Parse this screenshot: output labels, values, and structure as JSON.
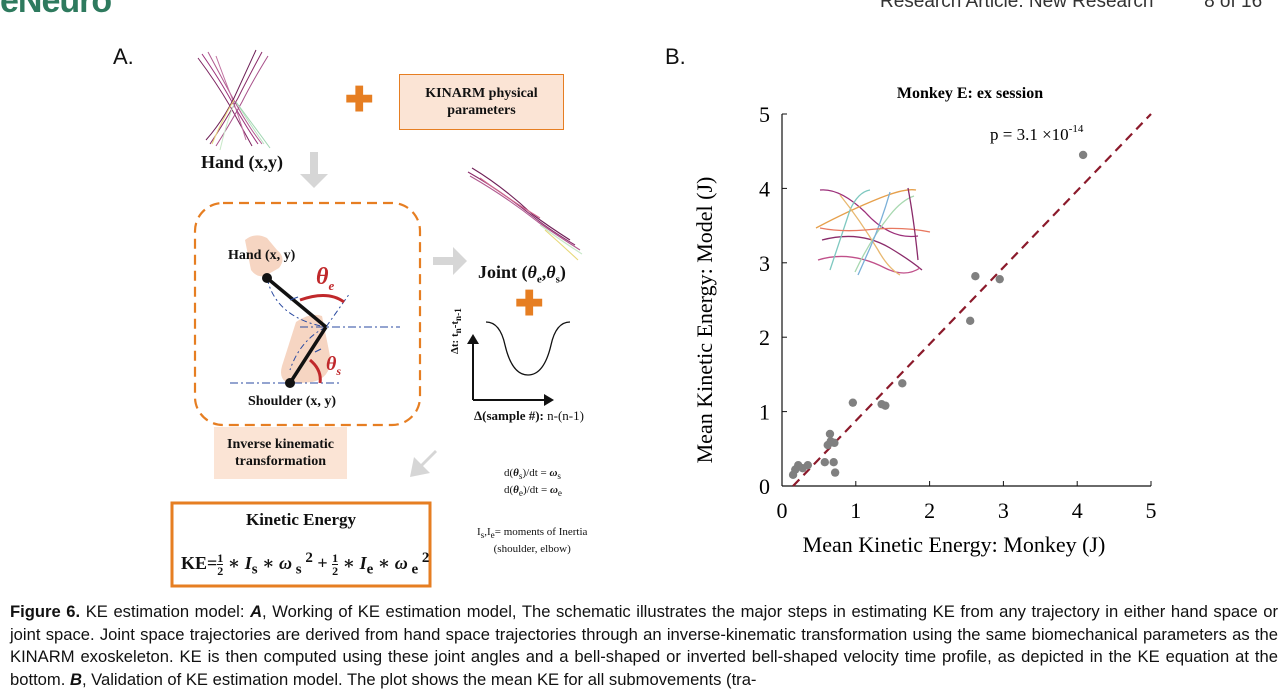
{
  "header": {
    "logo_text": "eNeuro",
    "running_title": "Research Article: New Research",
    "page_number": "8 of 16"
  },
  "panel_a": {
    "label": "A.",
    "kinarm_box": "KINARM physical parameters",
    "hand_xy": "Hand (x,y)",
    "arm_hand_label": "Hand (x, y)",
    "arm_shoulder_label": "Shoulder (x, y)",
    "theta_e": "θ",
    "theta_e_sub": "e",
    "theta_s": "θ",
    "theta_s_sub": "s",
    "inverse_box": "Inverse kinematic transformation",
    "joint_label": "Joint (θe,θs)",
    "dt_axis": "Δt: tn-tn-1",
    "sample_axis_bold": "Δ(sample #):",
    "sample_axis_rest": " n-(n-1)",
    "omega_s_eq": "d(θs)/dt = ωs",
    "omega_e_eq": "d(θe)/dt = ωe",
    "inertia_line1": "Is,Ie= moments of Inertia",
    "inertia_line2": "(shoulder, elbow)",
    "ke_title": "Kinetic Energy",
    "ke_prefix": "KE="
  },
  "panel_b": {
    "label": "B."
  },
  "chart_data": {
    "type": "scatter",
    "title": "Monkey E: ex session",
    "xlabel": "Mean Kinetic Energy: Monkey (J)",
    "ylabel": "Mean Kinetic Energy: Model (J)",
    "xlim": [
      0,
      5
    ],
    "ylim": [
      0,
      5
    ],
    "xticks": [
      0,
      1,
      2,
      3,
      4,
      5
    ],
    "yticks": [
      0,
      1,
      2,
      3,
      4,
      5
    ],
    "annotation": "p = 3.1 ×10",
    "annotation_exp": "-14",
    "reference_line": {
      "style": "dashed",
      "color": "#8b1a2b",
      "from": [
        0.15,
        0
      ],
      "to": [
        5,
        5
      ]
    },
    "point_color": "#808080",
    "x": [
      0.15,
      0.18,
      0.22,
      0.28,
      0.35,
      0.58,
      0.62,
      0.65,
      0.66,
      0.7,
      0.71,
      0.72,
      0.96,
      1.35,
      1.4,
      1.63,
      2.55,
      2.62,
      2.95,
      4.08
    ],
    "y": [
      0.15,
      0.22,
      0.28,
      0.24,
      0.28,
      0.32,
      0.55,
      0.7,
      0.6,
      0.32,
      0.58,
      0.18,
      1.12,
      1.1,
      1.08,
      1.38,
      2.22,
      2.82,
      2.78,
      4.45
    ]
  },
  "caption": {
    "figure_label": "Figure 6.",
    "text_1": " KE estimation model: ",
    "label_a": "A",
    "text_2": ", Working of KE estimation model, The schematic illustrates the major steps in estimating KE from any trajectory in either hand space or joint space. Joint space trajectories are derived from hand space trajectories through an inverse-kinematic transformation using the same biomechanical parameters as the KINARM exoskeleton. KE is then computed using these joint angles and a bell-shaped or inverted bell-shaped velocity time profile, as depicted in the KE equation at the bottom. ",
    "label_b": "B",
    "text_3": ", Validation of KE estimation model. The plot shows the mean KE for all submovements (tra-"
  }
}
